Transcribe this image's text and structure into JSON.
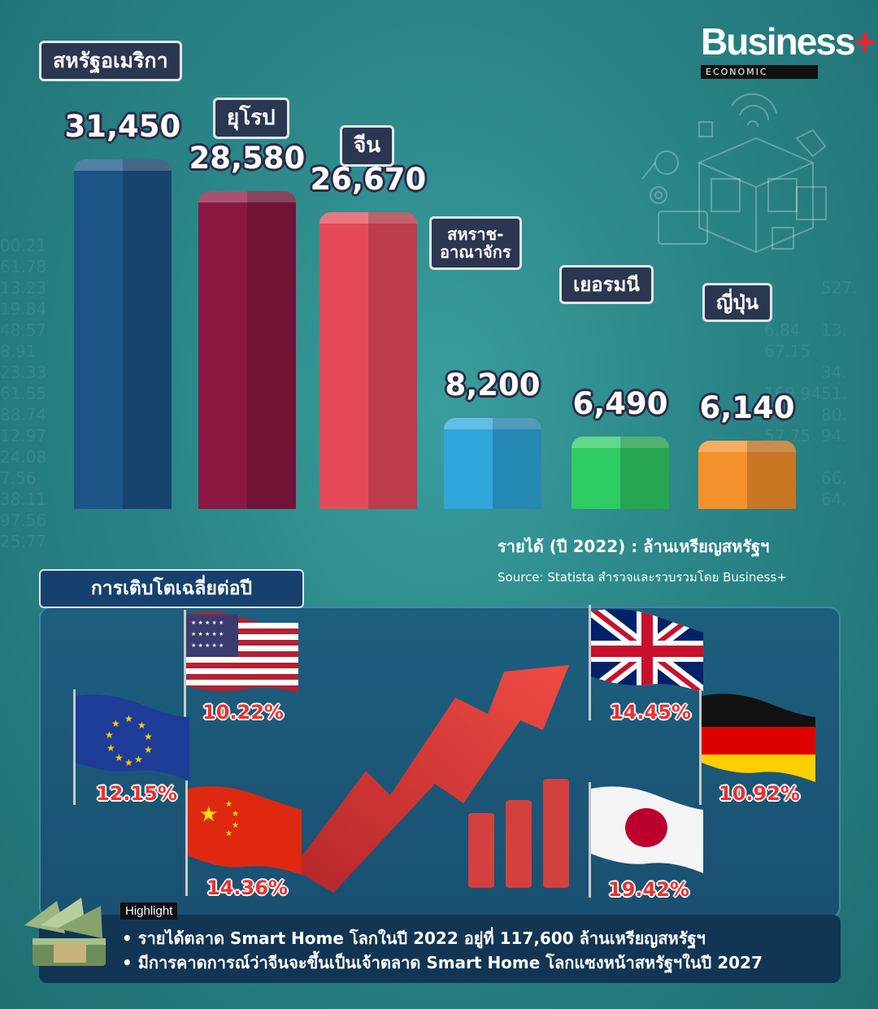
{
  "brand": {
    "name": "Business",
    "plus": "+",
    "sub": "ECONOMIC"
  },
  "chart_data": {
    "type": "bar",
    "categories": [
      "สหรัฐอเมริกา",
      "ยุโรป",
      "จีน",
      "สหราช-อาณาจักร",
      "เยอรมนี",
      "ญี่ปุ่น"
    ],
    "category_lines": [
      [
        "สหรัฐอเมริกา"
      ],
      [
        "ยุโรป"
      ],
      [
        "จีน"
      ],
      [
        "สหราช-",
        "อาณาจักร"
      ],
      [
        "เยอรมนี"
      ],
      [
        "ญี่ปุ่น"
      ]
    ],
    "values": [
      31450,
      28580,
      26670,
      8200,
      6490,
      6140
    ],
    "value_labels": [
      "31,450",
      "28,580",
      "26,670",
      "8,200",
      "6,490",
      "6,140"
    ],
    "colors": [
      "#1d5487",
      "#8a1843",
      "#e64a59",
      "#2fa7dc",
      "#2fcb63",
      "#f4912a"
    ],
    "ylabel": "รายได้ (ปี 2022) : ล้านเหรียญสหรัฐฯ"
  },
  "unit_label": "รายได้ (ปี 2022) : ล้านเหรียญสหรัฐฯ",
  "source": "Source: Statista สำรวจและรวบรวมโดย Business+",
  "growth": {
    "title": "การเติบโตเฉลี่ยต่อปี",
    "items": [
      {
        "country": "usa",
        "flag_icon": "usa-flag-icon",
        "pct": "10.22%"
      },
      {
        "country": "eu",
        "flag_icon": "eu-flag-icon",
        "pct": "12.15%"
      },
      {
        "country": "china",
        "flag_icon": "china-flag-icon",
        "pct": "14.36%"
      },
      {
        "country": "uk",
        "flag_icon": "uk-flag-icon",
        "pct": "14.45%"
      },
      {
        "country": "germany",
        "flag_icon": "germany-flag-icon",
        "pct": "10.92%"
      },
      {
        "country": "japan",
        "flag_icon": "japan-flag-icon",
        "pct": "19.42%"
      }
    ]
  },
  "highlight": {
    "tag": "Highlight",
    "lines": [
      "• รายได้ตลาด Smart Home โลกในปี 2022 อยู่ที่ 117,600 ล้านเหรียญสหรัฐฯ",
      "• มีการคาดการณ์ว่าจีนจะขึ้นเป็นเจ้าตลาด Smart Home โลกแซงหน้าสหรัฐฯในปี 2027"
    ]
  }
}
